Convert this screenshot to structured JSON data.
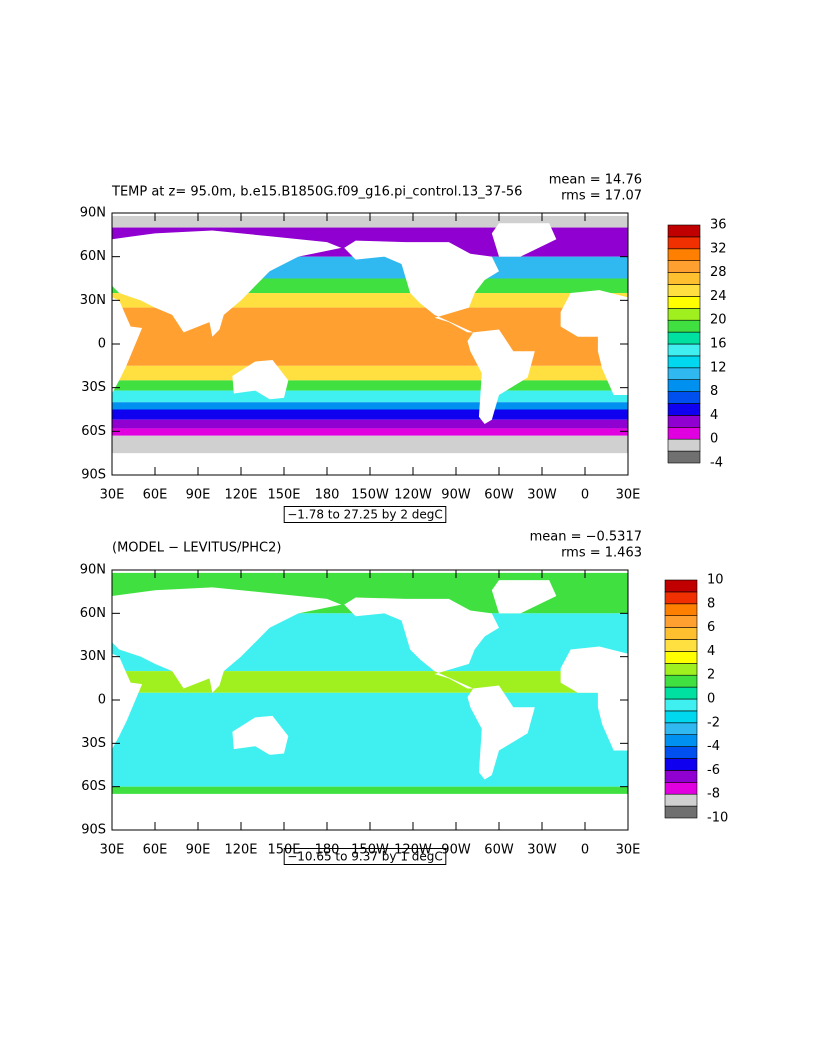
{
  "panels": [
    {
      "title": "TEMP at z=  95.0m, b.e15.B1850G.f09_g16.pi_control.13_37-56",
      "mean": "mean = 14.76",
      "rms": "rms = 17.07",
      "range": "−1.78 to 27.25 by 2 degC",
      "y_labels": [
        "90N",
        "60N",
        "30N",
        "0",
        "30S",
        "60S",
        "90S"
      ],
      "x_labels": [
        "30E",
        "60E",
        "90E",
        "120E",
        "150E",
        "180",
        "150W",
        "120W",
        "90W",
        "60W",
        "30W",
        "0",
        "30E"
      ],
      "colorbar": {
        "levels": [
          -4,
          -2,
          0,
          2,
          4,
          6,
          8,
          10,
          12,
          14,
          16,
          18,
          20,
          22,
          24,
          26,
          28,
          30,
          32,
          34,
          36
        ],
        "colors": [
          "#707070",
          "#d0d0d0",
          "#e000e0",
          "#9000d0",
          "#1000f0",
          "#0050f0",
          "#0090f0",
          "#30b8f0",
          "#00d8f0",
          "#40f0f0",
          "#00e0a0",
          "#40e040",
          "#a0f020",
          "#ffff00",
          "#ffe040",
          "#ffc030",
          "#ffa030",
          "#ff8000",
          "#f03000",
          "#c00000"
        ]
      }
    },
    {
      "title": "(MODEL − LEVITUS/PHC2)",
      "mean": "mean = −0.5317",
      "rms": "rms = 1.463",
      "range": "−10.65 to 9.37 by 1 degC",
      "y_labels": [
        "90N",
        "60N",
        "30N",
        "0",
        "30S",
        "60S",
        "90S"
      ],
      "x_labels": [
        "30E",
        "60E",
        "90E",
        "120E",
        "150E",
        "180",
        "150W",
        "120W",
        "90W",
        "60W",
        "30W",
        "0",
        "30E"
      ],
      "colorbar": {
        "levels": [
          -10,
          -9,
          -8,
          -7,
          -6,
          -5,
          -4,
          -3,
          -2,
          -1,
          0,
          1,
          2,
          3,
          4,
          5,
          6,
          7,
          8,
          9,
          10
        ],
        "colors": [
          "#707070",
          "#d0d0d0",
          "#e000e0",
          "#9000d0",
          "#1000f0",
          "#0050f0",
          "#0090f0",
          "#30b8f0",
          "#00d8f0",
          "#40f0f0",
          "#00e0a0",
          "#40e040",
          "#a0f020",
          "#ffff00",
          "#ffe040",
          "#ffc030",
          "#ffa030",
          "#ff8000",
          "#f03000",
          "#c00000"
        ]
      }
    }
  ]
}
